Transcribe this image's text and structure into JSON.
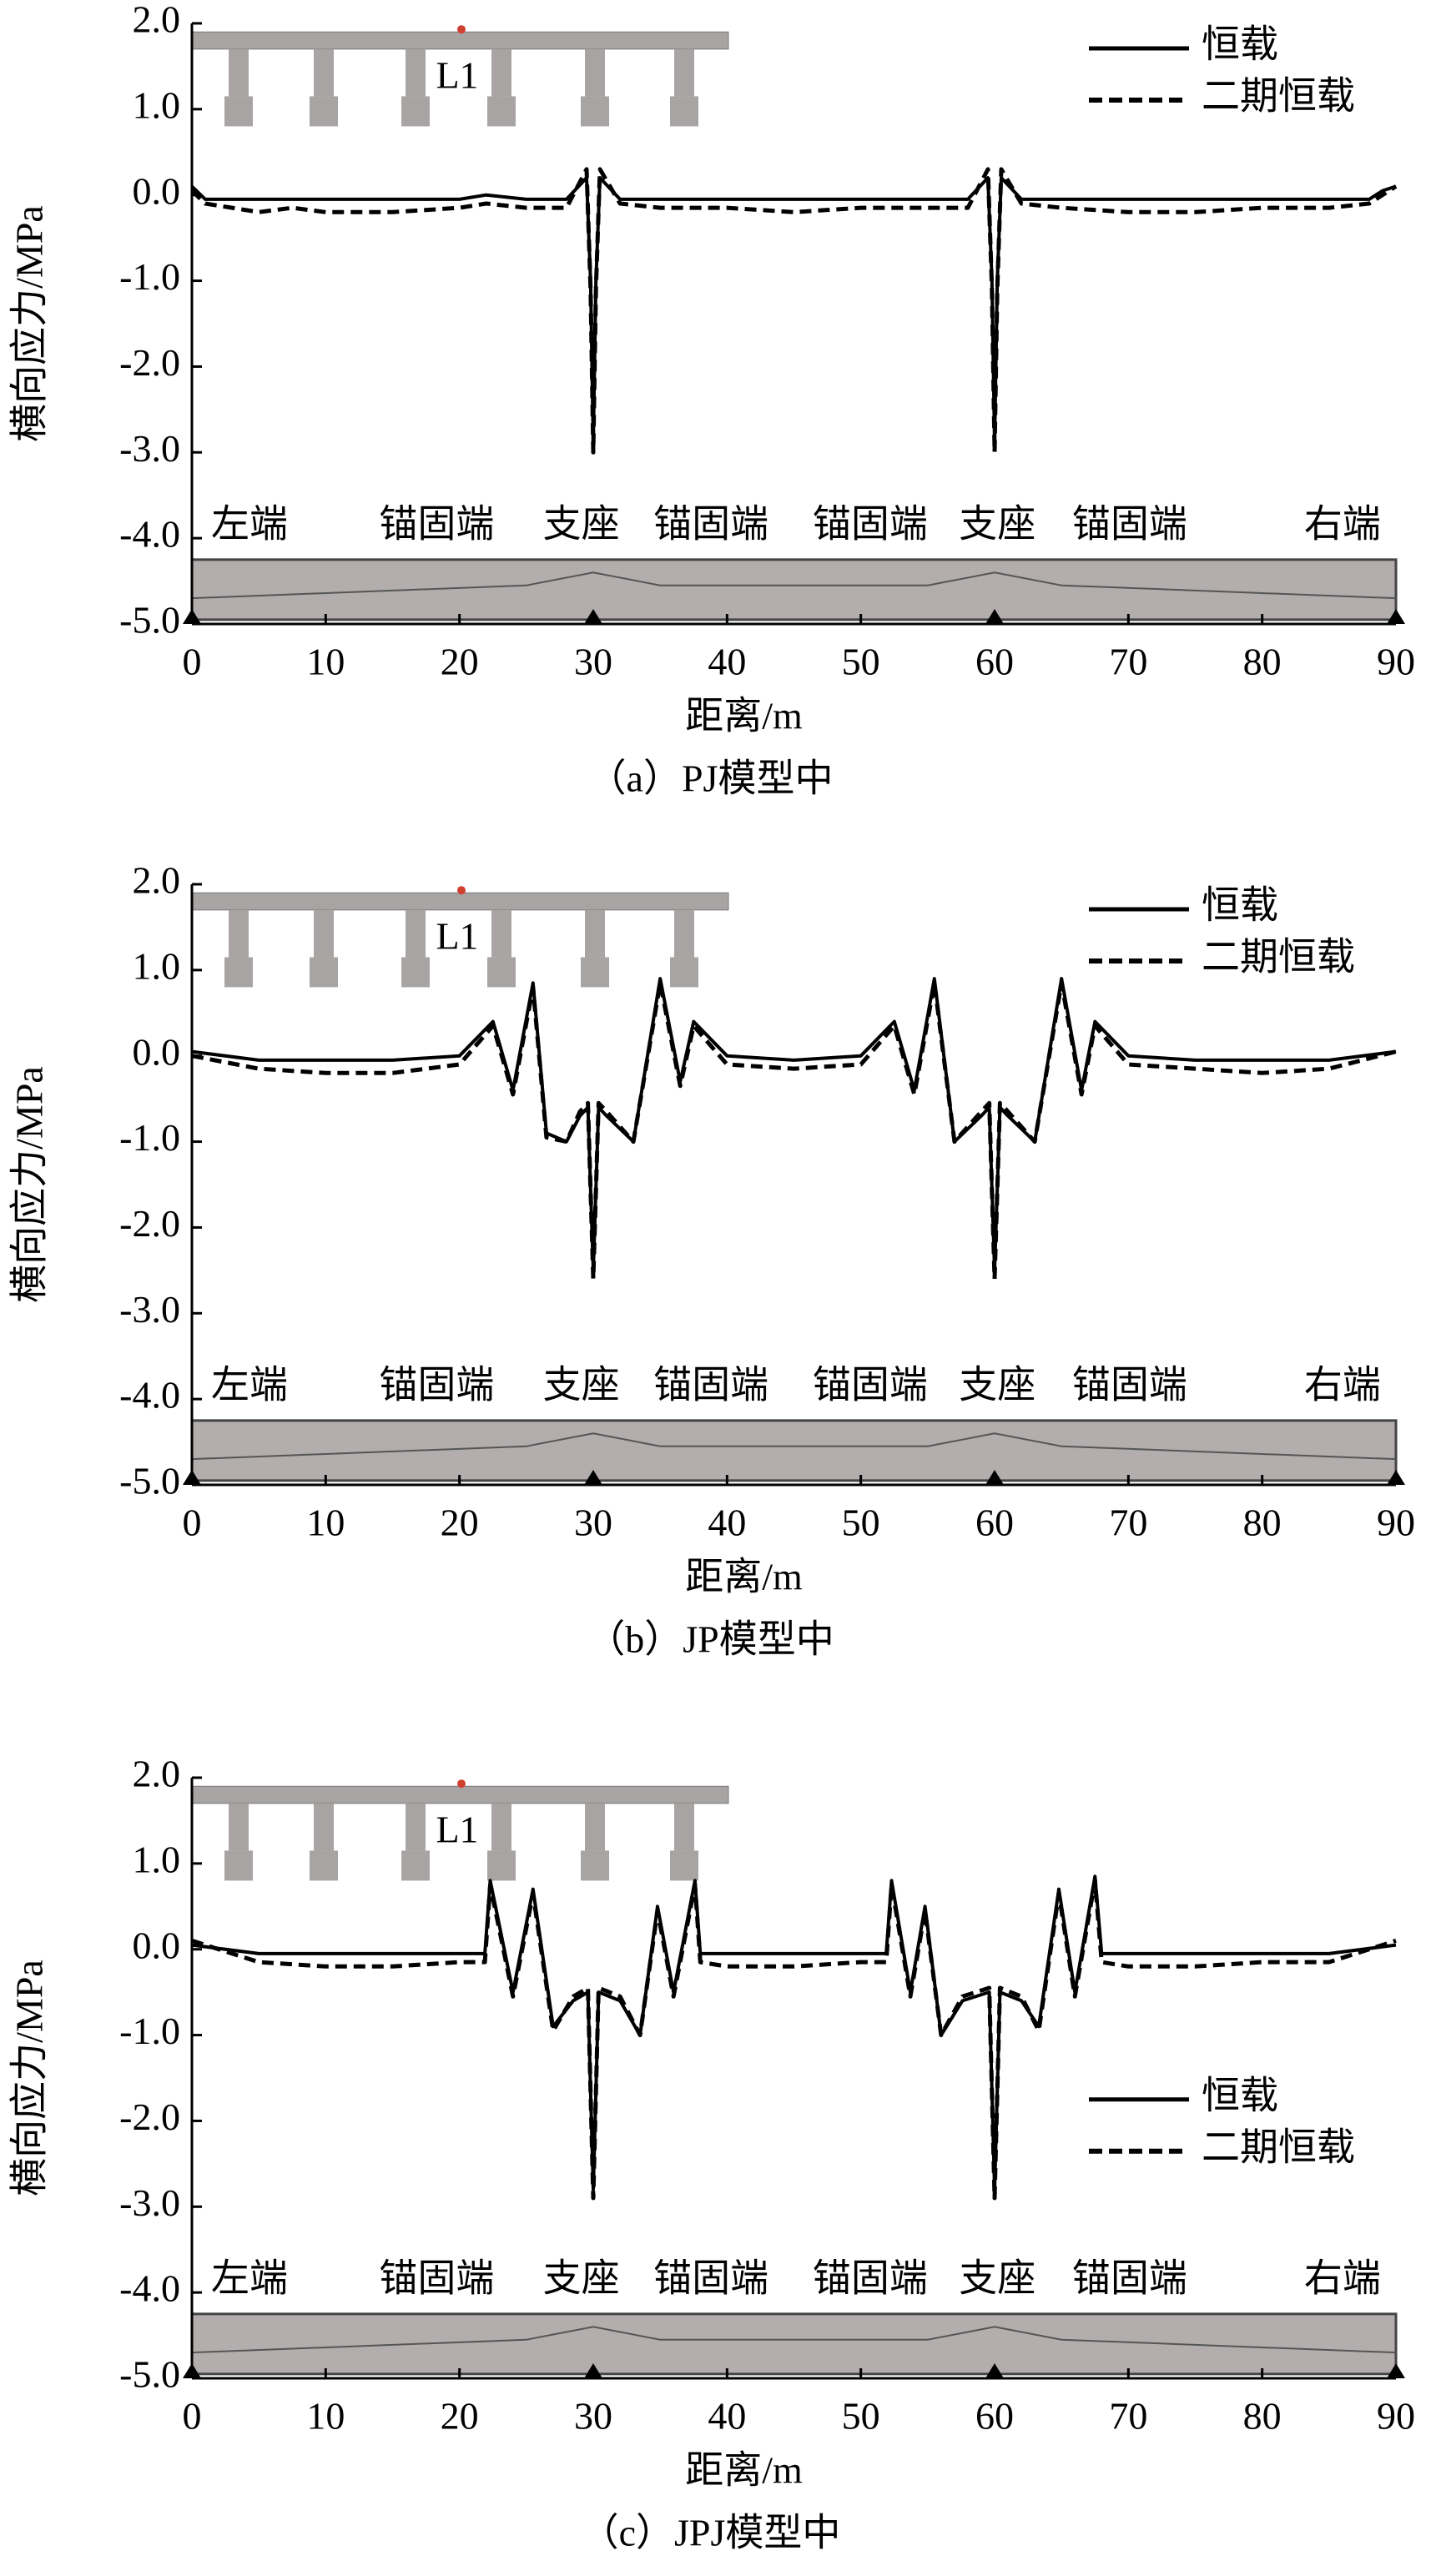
{
  "chart_data": [
    {
      "type": "line",
      "subtitle": "（a）PJ模型中",
      "xlabel": "距离/m",
      "ylabel": "横向应力/MPa",
      "legend": "upper right",
      "annotations": [
        "L1",
        "左端",
        "锚固端",
        "支座",
        "锚固端",
        "锚固端",
        "支座",
        "锚固端",
        "右端"
      ],
      "xlim": [
        0,
        90
      ],
      "ylim": [
        -5,
        2
      ],
      "xticks": [
        0,
        10,
        20,
        30,
        40,
        50,
        60,
        70,
        80,
        90
      ],
      "yticks": [
        {
          "value": 2,
          "label": "2.0"
        },
        {
          "value": 1,
          "label": "1.0"
        },
        {
          "value": 0,
          "label": "0.0"
        },
        {
          "value": -1,
          "label": "-1.0"
        },
        {
          "value": -2,
          "label": "-2.0"
        },
        {
          "value": -3,
          "label": "-3.0"
        },
        {
          "value": -4,
          "label": "-4.0"
        },
        {
          "value": -5,
          "label": "-5.0"
        }
      ],
      "x": [
        0,
        1,
        3,
        5,
        7.5,
        10,
        15,
        20,
        22,
        25,
        28,
        29.5,
        29.8,
        30,
        30.2,
        30.5,
        32,
        35,
        40,
        45,
        50,
        55,
        58,
        59.5,
        59.8,
        60,
        60.2,
        60.5,
        62,
        65,
        70,
        75,
        80,
        85,
        88,
        89,
        90
      ],
      "series": [
        {
          "name": "恒载",
          "color": "#000000",
          "linestyle": "solid",
          "values": [
            0.1,
            -0.05,
            -0.05,
            -0.05,
            -0.05,
            -0.05,
            -0.05,
            -0.05,
            0,
            -0.05,
            -0.05,
            0.2,
            -1,
            -2.9,
            -1,
            0.2,
            -0.05,
            -0.05,
            -0.05,
            -0.05,
            -0.05,
            -0.05,
            -0.05,
            0.2,
            -1,
            -2.9,
            -1,
            0.2,
            -0.05,
            -0.05,
            -0.05,
            -0.05,
            -0.05,
            -0.05,
            -0.05,
            0.05,
            0.1
          ]
        },
        {
          "name": "二期恒载",
          "color": "#000000",
          "linestyle": "dashed",
          "values": [
            0.05,
            -0.1,
            -0.15,
            -0.2,
            -0.15,
            -0.2,
            -0.2,
            -0.15,
            -0.1,
            -0.15,
            -0.15,
            0.3,
            -1.1,
            -3.0,
            -1.1,
            0.3,
            -0.1,
            -0.15,
            -0.15,
            -0.2,
            -0.15,
            -0.15,
            -0.15,
            0.3,
            -1.1,
            -3.0,
            -1.1,
            0.3,
            -0.1,
            -0.15,
            -0.2,
            -0.2,
            -0.15,
            -0.15,
            -0.1,
            0.0,
            0.1
          ]
        }
      ]
    },
    {
      "type": "line",
      "subtitle": "（b）JP模型中",
      "xlabel": "距离/m",
      "ylabel": "横向应力/MPa",
      "legend": "upper right",
      "annotations": [
        "L1",
        "左端",
        "锚固端",
        "支座",
        "锚固端",
        "锚固端",
        "支座",
        "锚固端",
        "右端"
      ],
      "xlim": [
        0,
        90
      ],
      "ylim": [
        -5,
        2
      ],
      "xticks": [
        0,
        10,
        20,
        30,
        40,
        50,
        60,
        70,
        80,
        90
      ],
      "yticks": [
        {
          "value": 2,
          "label": "2.0"
        },
        {
          "value": 1,
          "label": "1.0"
        },
        {
          "value": 0,
          "label": "0.0"
        },
        {
          "value": -1,
          "label": "-1.0"
        },
        {
          "value": -2,
          "label": "-2.0"
        },
        {
          "value": -3,
          "label": "-3.0"
        },
        {
          "value": -4,
          "label": "-4.0"
        },
        {
          "value": -5,
          "label": "-5.0"
        }
      ],
      "x": [
        0,
        5,
        10,
        15,
        20,
        22.5,
        24,
        25.5,
        26.5,
        28,
        29,
        29.6,
        30,
        30.4,
        31,
        33,
        35,
        36.5,
        37.5,
        40,
        45,
        50,
        52.5,
        54,
        55.5,
        57,
        59,
        59.6,
        60,
        60.4,
        61,
        63,
        65,
        66.5,
        67.5,
        70,
        75,
        80,
        85,
        90
      ],
      "series": [
        {
          "name": "恒载",
          "color": "#000000",
          "linestyle": "solid",
          "values": [
            0.05,
            -0.05,
            -0.05,
            -0.05,
            0,
            0.4,
            -0.4,
            0.85,
            -0.9,
            -1.0,
            -0.7,
            -0.6,
            -2.5,
            -0.6,
            -0.7,
            -1.0,
            0.9,
            -0.3,
            0.4,
            0,
            -0.05,
            0,
            0.4,
            -0.4,
            0.9,
            -1.0,
            -0.7,
            -0.6,
            -2.5,
            -0.6,
            -0.7,
            -1.0,
            0.9,
            -0.4,
            0.4,
            0,
            -0.05,
            -0.05,
            -0.05,
            0.05
          ]
        },
        {
          "name": "二期恒载",
          "color": "#000000",
          "linestyle": "dashed",
          "values": [
            0,
            -0.15,
            -0.2,
            -0.2,
            -0.1,
            0.35,
            -0.45,
            0.8,
            -0.95,
            -1.0,
            -0.65,
            -0.55,
            -2.6,
            -0.55,
            -0.65,
            -1.0,
            0.85,
            -0.35,
            0.35,
            -0.1,
            -0.15,
            -0.1,
            0.35,
            -0.45,
            0.85,
            -1.0,
            -0.65,
            -0.55,
            -2.6,
            -0.55,
            -0.65,
            -1.0,
            0.85,
            -0.45,
            0.35,
            -0.1,
            -0.15,
            -0.2,
            -0.15,
            0.05
          ]
        }
      ]
    },
    {
      "type": "line",
      "subtitle": "（c）JPJ模型中",
      "xlabel": "距离/m",
      "ylabel": "横向应力/MPa",
      "legend": "center right",
      "annotations": [
        "L1",
        "左端",
        "锚固端",
        "支座",
        "锚固端",
        "锚固端",
        "支座",
        "锚固端",
        "右端"
      ],
      "xlim": [
        0,
        90
      ],
      "ylim": [
        -5,
        2
      ],
      "xticks": [
        0,
        10,
        20,
        30,
        40,
        50,
        60,
        70,
        80,
        90
      ],
      "yticks": [
        {
          "value": 2,
          "label": "2.0"
        },
        {
          "value": 1,
          "label": "1.0"
        },
        {
          "value": 0,
          "label": "0.0"
        },
        {
          "value": -1,
          "label": "-1.0"
        },
        {
          "value": -2,
          "label": "-2.0"
        },
        {
          "value": -3,
          "label": "-3.0"
        },
        {
          "value": -4,
          "label": "-4.0"
        },
        {
          "value": -5,
          "label": "-5.0"
        }
      ],
      "x": [
        0,
        5,
        10,
        15,
        20,
        21.9,
        22.3,
        24,
        25.5,
        27,
        28.5,
        29.6,
        30,
        30.4,
        32,
        33.5,
        34.8,
        36,
        37.6,
        38,
        40,
        45,
        50,
        51.9,
        52.3,
        53.7,
        54.8,
        56,
        57.6,
        59.6,
        60,
        60.4,
        62,
        63.3,
        64.8,
        66,
        67.5,
        68,
        70,
        75,
        80,
        85,
        90
      ],
      "series": [
        {
          "name": "恒载",
          "color": "#000000",
          "linestyle": "solid",
          "values": [
            0.05,
            -0.05,
            -0.05,
            -0.05,
            -0.05,
            -0.05,
            0.8,
            -0.5,
            0.7,
            -0.9,
            -0.6,
            -0.5,
            -2.8,
            -0.5,
            -0.6,
            -1.0,
            0.5,
            -0.5,
            0.8,
            -0.05,
            -0.05,
            -0.05,
            -0.05,
            -0.05,
            0.8,
            -0.5,
            0.5,
            -1.0,
            -0.6,
            -0.5,
            -2.8,
            -0.5,
            -0.6,
            -0.9,
            0.7,
            -0.5,
            0.85,
            -0.05,
            -0.05,
            -0.05,
            -0.05,
            -0.05,
            0.05
          ]
        },
        {
          "name": "二期恒载",
          "color": "#000000",
          "linestyle": "dashed",
          "values": [
            0.1,
            -0.15,
            -0.2,
            -0.2,
            -0.15,
            -0.15,
            0.75,
            -0.55,
            0.65,
            -0.95,
            -0.55,
            -0.45,
            -2.9,
            -0.45,
            -0.55,
            -1.0,
            0.45,
            -0.55,
            0.75,
            -0.15,
            -0.2,
            -0.2,
            -0.15,
            -0.15,
            0.75,
            -0.55,
            0.45,
            -1.0,
            -0.55,
            -0.45,
            -2.9,
            -0.45,
            -0.55,
            -0.95,
            0.65,
            -0.55,
            0.8,
            -0.15,
            -0.2,
            -0.2,
            -0.15,
            -0.15,
            0.1
          ]
        }
      ]
    }
  ]
}
